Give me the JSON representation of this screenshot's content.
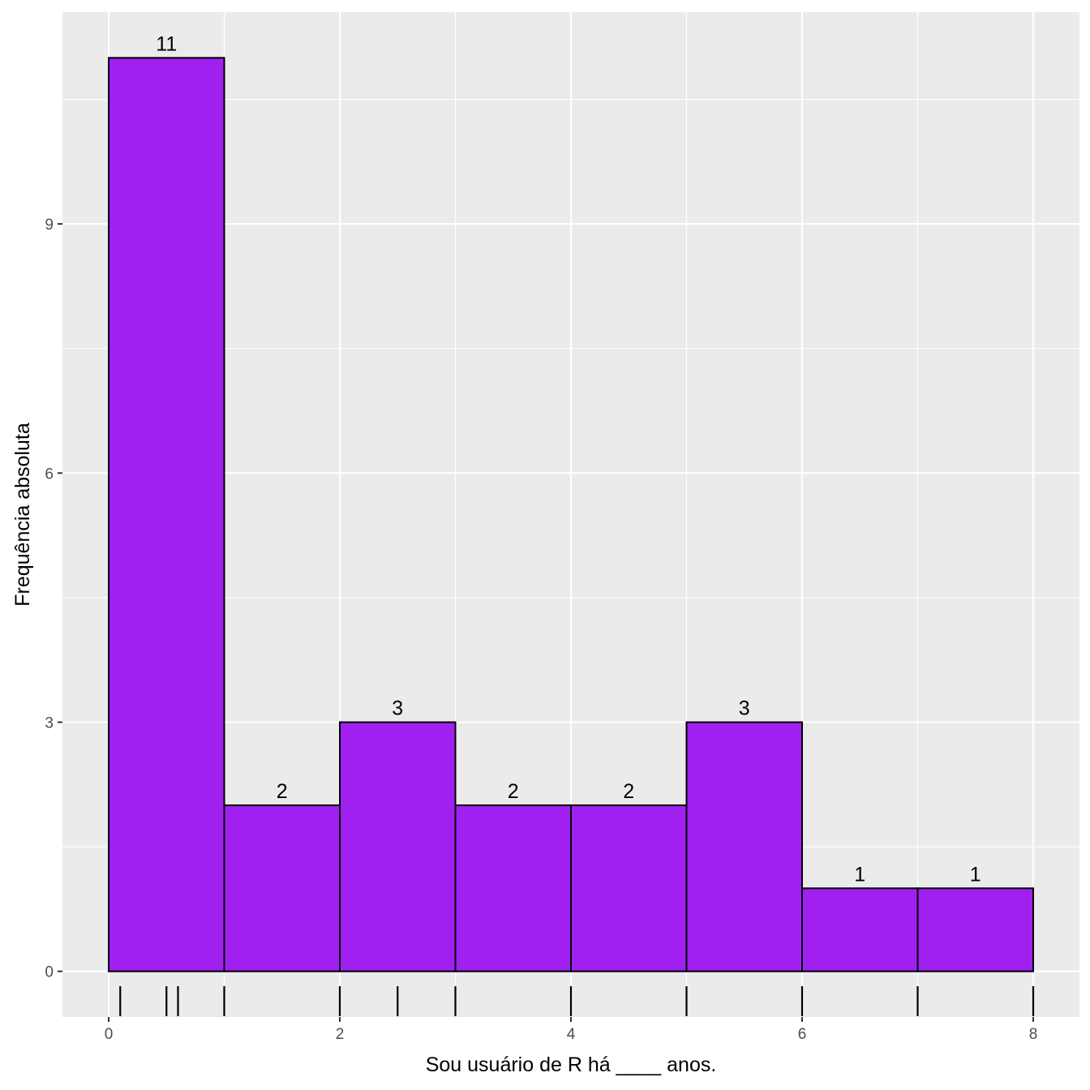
{
  "chart_data": {
    "type": "bar",
    "chart_kind": "histogram",
    "xlabel": "Sou usuário de R há ____ anos.",
    "ylabel": "Frequência absoluta",
    "bins": [
      {
        "start": 0,
        "end": 1,
        "count": 11
      },
      {
        "start": 1,
        "end": 2,
        "count": 2
      },
      {
        "start": 2,
        "end": 3,
        "count": 3
      },
      {
        "start": 3,
        "end": 4,
        "count": 2
      },
      {
        "start": 4,
        "end": 5,
        "count": 2
      },
      {
        "start": 5,
        "end": 6,
        "count": 3
      },
      {
        "start": 6,
        "end": 7,
        "count": 1
      },
      {
        "start": 7,
        "end": 8,
        "count": 1
      }
    ],
    "data_labels": [
      "11",
      "2",
      "3",
      "2",
      "2",
      "3",
      "1",
      "1"
    ],
    "rug_values": [
      0.1,
      0.5,
      0.6,
      1,
      2,
      2.5,
      3,
      4,
      5,
      6,
      7,
      8
    ],
    "x_ticks": [
      0,
      2,
      4,
      6,
      8
    ],
    "x_tick_labels": [
      "0",
      "2",
      "4",
      "6",
      "8"
    ],
    "y_ticks": [
      0,
      3,
      6,
      9
    ],
    "y_tick_labels": [
      "0",
      "3",
      "6",
      "9"
    ],
    "xlim": [
      -0.4,
      8.4
    ],
    "ylim": [
      -0.55,
      11.55
    ],
    "grid": true,
    "colors": {
      "bar_fill": "#A020F0",
      "bar_outline": "#000000",
      "panel_background": "#EBEBEB",
      "grid": "#FFFFFF"
    }
  }
}
